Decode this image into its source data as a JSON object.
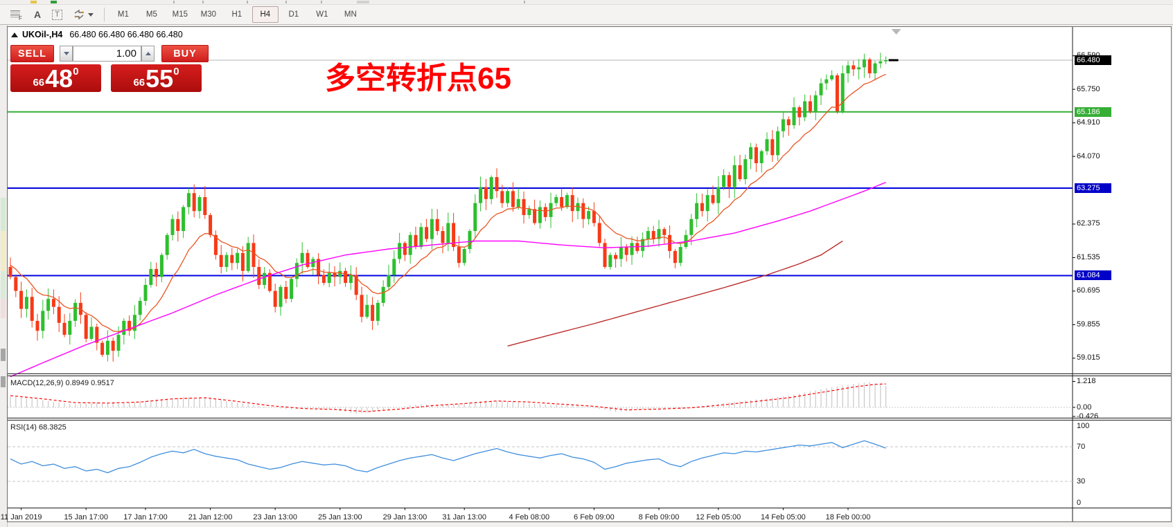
{
  "upper_toolbar": {
    "fragments": [
      {
        "x": 44,
        "w": 9,
        "color": "#e6c447"
      },
      {
        "x": 73,
        "w": 9,
        "color": "#2f9e3a"
      },
      {
        "x": 250,
        "w": 2,
        "color": "#b3b3b3"
      },
      {
        "x": 292,
        "w": 2,
        "color": "#b3b3b3"
      },
      {
        "x": 356,
        "w": 2,
        "color": "#b3b3b3"
      },
      {
        "x": 412,
        "w": 2,
        "color": "#b3b3b3"
      },
      {
        "x": 463,
        "w": 2,
        "color": "#b3b3b3"
      },
      {
        "x": 515,
        "w": 18,
        "color": "#d2d1cf"
      },
      {
        "x": 756,
        "w": 2,
        "color": "#b3b3b3"
      }
    ]
  },
  "toolbar": {
    "icon_a": "A",
    "icon_t": "T",
    "timeframes": [
      "M1",
      "M5",
      "M15",
      "M30",
      "H1",
      "H4",
      "D1",
      "W1",
      "MN"
    ],
    "active_timeframe": "H4"
  },
  "header": {
    "symbol_title": "UKOil-,H4",
    "ohlc": "66.480 66.480 66.480 66.480"
  },
  "trade_panel": {
    "sell_label": "SELL",
    "buy_label": "BUY",
    "volume": "1.00",
    "sell_price": {
      "prefix": "66",
      "main": "48",
      "sup": "0"
    },
    "buy_price": {
      "prefix": "66",
      "main": "55",
      "sup": "0"
    }
  },
  "annotation": {
    "text": "多空转折点65",
    "color": "#ff0000"
  },
  "price_axis": {
    "ticks": [
      {
        "label": "66.590",
        "v": 66.59
      },
      {
        "label": "65.750",
        "v": 65.75
      },
      {
        "label": "64.910",
        "v": 64.91
      },
      {
        "label": "64.070",
        "v": 64.07
      },
      {
        "label": "62.375",
        "v": 62.375
      },
      {
        "label": "61.535",
        "v": 61.535
      },
      {
        "label": "60.695",
        "v": 60.695
      },
      {
        "label": "59.855",
        "v": 59.855
      },
      {
        "label": "59.015",
        "v": 59.015
      }
    ],
    "badges": [
      {
        "label": "66.480",
        "v": 66.48,
        "color": "#000000"
      },
      {
        "label": "65.186",
        "v": 65.186,
        "color": "#36ae36"
      },
      {
        "label": "63.275",
        "v": 63.275,
        "color": "#0000c8"
      },
      {
        "label": "61.084",
        "v": 61.084,
        "color": "#0000c8"
      }
    ]
  },
  "time_axis": {
    "labels": [
      {
        "text": "11 Jan 2019",
        "bar": 2
      },
      {
        "text": "15 Jan 17:00",
        "bar": 14
      },
      {
        "text": "17 Jan 17:00",
        "bar": 25
      },
      {
        "text": "21 Jan 12:00",
        "bar": 37
      },
      {
        "text": "23 Jan 13:00",
        "bar": 49
      },
      {
        "text": "25 Jan 13:00",
        "bar": 61
      },
      {
        "text": "29 Jan 13:00",
        "bar": 73
      },
      {
        "text": "31 Jan 13:00",
        "bar": 84
      },
      {
        "text": "4 Feb 08:00",
        "bar": 96
      },
      {
        "text": "6 Feb 09:00",
        "bar": 108
      },
      {
        "text": "8 Feb 09:00",
        "bar": 120
      },
      {
        "text": "12 Feb 05:00",
        "bar": 131
      },
      {
        "text": "14 Feb 05:00",
        "bar": 143
      },
      {
        "text": "18 Feb 00:00",
        "bar": 155
      }
    ]
  },
  "macd_panel": {
    "label": "MACD(12,26,9) 0.8949 0.9517",
    "ticks": [
      {
        "label": "1.218",
        "v": 1.218
      },
      {
        "label": "0.00",
        "v": 0.0
      },
      {
        "label": "-0.426",
        "v": -0.426
      }
    ],
    "hist_color": "#c8c8c8",
    "signal_color": "#ff0000",
    "hist": [
      [
        0,
        0.5
      ],
      [
        4,
        0.42
      ],
      [
        8,
        0.25
      ],
      [
        12,
        0.15
      ],
      [
        16,
        0.22
      ],
      [
        20,
        0.18
      ],
      [
        24,
        0.28
      ],
      [
        28,
        0.38
      ],
      [
        32,
        0.48
      ],
      [
        36,
        0.42
      ],
      [
        40,
        0.3
      ],
      [
        44,
        0.15
      ],
      [
        48,
        0.0
      ],
      [
        52,
        -0.1
      ],
      [
        56,
        -0.05
      ],
      [
        60,
        -0.12
      ],
      [
        64,
        -0.3
      ],
      [
        68,
        -0.18
      ],
      [
        72,
        0.02
      ],
      [
        76,
        0.15
      ],
      [
        80,
        0.1
      ],
      [
        84,
        0.2
      ],
      [
        88,
        0.32
      ],
      [
        92,
        0.28
      ],
      [
        96,
        0.18
      ],
      [
        100,
        0.12
      ],
      [
        104,
        0.1
      ],
      [
        108,
        -0.02
      ],
      [
        112,
        -0.22
      ],
      [
        116,
        -0.12
      ],
      [
        120,
        -0.05
      ],
      [
        124,
        -0.1
      ],
      [
        128,
        0.08
      ],
      [
        132,
        0.2
      ],
      [
        136,
        0.32
      ],
      [
        140,
        0.42
      ],
      [
        144,
        0.55
      ],
      [
        148,
        0.75
      ],
      [
        152,
        0.95
      ],
      [
        156,
        1.1
      ],
      [
        159,
        1.18
      ],
      [
        162,
        1.0
      ]
    ],
    "signal": [
      [
        0,
        0.55
      ],
      [
        6,
        0.4
      ],
      [
        12,
        0.22
      ],
      [
        18,
        0.2
      ],
      [
        24,
        0.25
      ],
      [
        30,
        0.4
      ],
      [
        36,
        0.45
      ],
      [
        42,
        0.28
      ],
      [
        48,
        0.08
      ],
      [
        54,
        -0.05
      ],
      [
        60,
        -0.1
      ],
      [
        66,
        -0.2
      ],
      [
        72,
        -0.08
      ],
      [
        78,
        0.08
      ],
      [
        84,
        0.18
      ],
      [
        90,
        0.3
      ],
      [
        96,
        0.25
      ],
      [
        102,
        0.15
      ],
      [
        108,
        0.05
      ],
      [
        114,
        -0.12
      ],
      [
        120,
        -0.08
      ],
      [
        126,
        -0.02
      ],
      [
        132,
        0.12
      ],
      [
        138,
        0.28
      ],
      [
        144,
        0.45
      ],
      [
        150,
        0.7
      ],
      [
        156,
        0.95
      ],
      [
        160,
        1.08
      ],
      [
        162,
        1.1
      ]
    ]
  },
  "rsi_panel": {
    "label": "RSI(14) 68.3825",
    "ticks": [
      {
        "label": "100",
        "v": 100
      },
      {
        "label": "70",
        "v": 70
      },
      {
        "label": "30",
        "v": 30
      },
      {
        "label": "0",
        "v": 0
      }
    ],
    "line_color": "#3f8ede",
    "level_lines": [
      70,
      30
    ],
    "series": [
      [
        0,
        56
      ],
      [
        2,
        50
      ],
      [
        4,
        53
      ],
      [
        6,
        48
      ],
      [
        8,
        50
      ],
      [
        10,
        45
      ],
      [
        12,
        47
      ],
      [
        14,
        42
      ],
      [
        16,
        44
      ],
      [
        18,
        40
      ],
      [
        20,
        45
      ],
      [
        22,
        47
      ],
      [
        24,
        52
      ],
      [
        26,
        58
      ],
      [
        28,
        62
      ],
      [
        30,
        65
      ],
      [
        32,
        63
      ],
      [
        34,
        67
      ],
      [
        36,
        62
      ],
      [
        38,
        59
      ],
      [
        40,
        57
      ],
      [
        42,
        55
      ],
      [
        44,
        50
      ],
      [
        46,
        47
      ],
      [
        48,
        44
      ],
      [
        50,
        46
      ],
      [
        52,
        50
      ],
      [
        54,
        53
      ],
      [
        56,
        51
      ],
      [
        58,
        49
      ],
      [
        60,
        50
      ],
      [
        62,
        48
      ],
      [
        64,
        43
      ],
      [
        66,
        41
      ],
      [
        68,
        46
      ],
      [
        70,
        50
      ],
      [
        72,
        54
      ],
      [
        74,
        57
      ],
      [
        76,
        59
      ],
      [
        78,
        61
      ],
      [
        80,
        57
      ],
      [
        82,
        54
      ],
      [
        84,
        58
      ],
      [
        86,
        62
      ],
      [
        88,
        65
      ],
      [
        90,
        68
      ],
      [
        92,
        64
      ],
      [
        94,
        61
      ],
      [
        96,
        59
      ],
      [
        98,
        57
      ],
      [
        100,
        60
      ],
      [
        102,
        62
      ],
      [
        104,
        58
      ],
      [
        106,
        56
      ],
      [
        108,
        52
      ],
      [
        110,
        44
      ],
      [
        112,
        47
      ],
      [
        114,
        51
      ],
      [
        116,
        53
      ],
      [
        118,
        55
      ],
      [
        120,
        56
      ],
      [
        122,
        50
      ],
      [
        124,
        47
      ],
      [
        126,
        53
      ],
      [
        128,
        57
      ],
      [
        130,
        60
      ],
      [
        132,
        63
      ],
      [
        134,
        62
      ],
      [
        136,
        65
      ],
      [
        138,
        64
      ],
      [
        140,
        66
      ],
      [
        142,
        68
      ],
      [
        144,
        70
      ],
      [
        146,
        72
      ],
      [
        148,
        71
      ],
      [
        150,
        73
      ],
      [
        152,
        75
      ],
      [
        154,
        69
      ],
      [
        156,
        73
      ],
      [
        158,
        77
      ],
      [
        160,
        73
      ],
      [
        162,
        68.4
      ]
    ]
  },
  "chart_data": {
    "type": "candlestick",
    "symbol": "UKOil-",
    "timeframe": "H4",
    "ylim": [
      58.62,
      67.31
    ],
    "current_price": 66.48,
    "bull_color": "#2ebf2e",
    "bear_color": "#f63a17",
    "first_open": 61.3,
    "closes": [
      61.05,
      60.7,
      60.25,
      60.55,
      59.95,
      59.7,
      60.2,
      60.5,
      60.3,
      59.9,
      59.6,
      59.95,
      60.4,
      60.1,
      59.5,
      59.8,
      59.4,
      59.1,
      59.45,
      59.2,
      59.6,
      59.95,
      59.7,
      60.1,
      60.45,
      60.85,
      61.25,
      61.05,
      61.6,
      62.1,
      62.5,
      62.2,
      62.8,
      63.15,
      62.7,
      63.05,
      62.6,
      62.1,
      61.6,
      61.3,
      61.6,
      61.4,
      61.65,
      61.2,
      61.9,
      61.3,
      60.85,
      61.15,
      60.7,
      60.3,
      60.8,
      60.5,
      61.0,
      61.4,
      61.65,
      61.3,
      61.5,
      61.1,
      60.9,
      61.15,
      61.05,
      61.2,
      60.9,
      61.1,
      60.6,
      60.05,
      60.35,
      59.95,
      60.4,
      60.8,
      61.1,
      61.5,
      61.9,
      61.6,
      62.1,
      61.8,
      62.3,
      62.0,
      62.5,
      62.2,
      61.9,
      62.4,
      61.8,
      61.4,
      61.75,
      62.2,
      62.9,
      63.3,
      63.0,
      63.55,
      63.2,
      62.9,
      63.2,
      62.8,
      63.0,
      62.6,
      62.75,
      62.4,
      62.8,
      62.55,
      62.9,
      63.05,
      62.8,
      63.1,
      62.7,
      62.9,
      62.5,
      62.7,
      62.4,
      61.9,
      61.3,
      61.6,
      61.5,
      61.8,
      61.6,
      61.9,
      61.7,
      62.0,
      62.2,
      62.0,
      62.25,
      62.1,
      61.7,
      61.4,
      61.8,
      62.1,
      62.5,
      62.9,
      62.7,
      63.1,
      62.9,
      63.3,
      63.6,
      63.3,
      63.85,
      63.5,
      64.0,
      64.3,
      63.9,
      64.2,
      64.5,
      64.1,
      64.7,
      65.0,
      64.85,
      65.3,
      65.05,
      65.45,
      65.2,
      65.6,
      65.9,
      66.0,
      66.1,
      65.2,
      66.15,
      66.35,
      66.25,
      66.3,
      66.5,
      66.15,
      66.4,
      66.45,
      66.48
    ],
    "hlines": [
      {
        "v": 65.186,
        "color": "#36ae36"
      },
      {
        "v": 63.275,
        "color": "#0000e0"
      },
      {
        "v": 61.084,
        "color": "#0000e0"
      }
    ],
    "ma_fast": {
      "color": "#e95420",
      "period": 12,
      "seed": 61.4
    },
    "ma_mid": {
      "color": "#ff00ff",
      "points": [
        [
          0,
          58.55
        ],
        [
          6,
          58.9
        ],
        [
          14,
          59.35
        ],
        [
          22,
          59.75
        ],
        [
          30,
          60.15
        ],
        [
          38,
          60.6
        ],
        [
          46,
          61.0
        ],
        [
          54,
          61.35
        ],
        [
          62,
          61.6
        ],
        [
          70,
          61.75
        ],
        [
          78,
          61.85
        ],
        [
          86,
          61.95
        ],
        [
          94,
          61.95
        ],
        [
          102,
          61.85
        ],
        [
          110,
          61.78
        ],
        [
          118,
          61.82
        ],
        [
          126,
          61.95
        ],
        [
          134,
          62.15
        ],
        [
          142,
          62.45
        ],
        [
          148,
          62.7
        ],
        [
          154,
          63.0
        ],
        [
          158,
          63.2
        ],
        [
          162,
          63.42
        ]
      ]
    },
    "ma_slow": {
      "color": "#bb2b2b",
      "points": [
        [
          92,
          59.32
        ],
        [
          100,
          59.6
        ],
        [
          108,
          59.88
        ],
        [
          116,
          60.18
        ],
        [
          124,
          60.48
        ],
        [
          132,
          60.78
        ],
        [
          140,
          61.1
        ],
        [
          146,
          61.38
        ],
        [
          150,
          61.6
        ],
        [
          154,
          61.95
        ]
      ]
    }
  },
  "left_strip": {
    "segments": [
      {
        "y": 250,
        "h": 48,
        "color": "#d4ead2"
      },
      {
        "y": 298,
        "h": 58,
        "color": "#f1ecc6"
      },
      {
        "y": 356,
        "h": 40,
        "color": "#d9ead9"
      },
      {
        "y": 396,
        "h": 28,
        "color": "#f0dede"
      },
      {
        "y": 468,
        "h": 18,
        "color": "#a6a6a6"
      },
      {
        "y": 508,
        "h": 16,
        "color": "#a6a6a6"
      }
    ]
  }
}
